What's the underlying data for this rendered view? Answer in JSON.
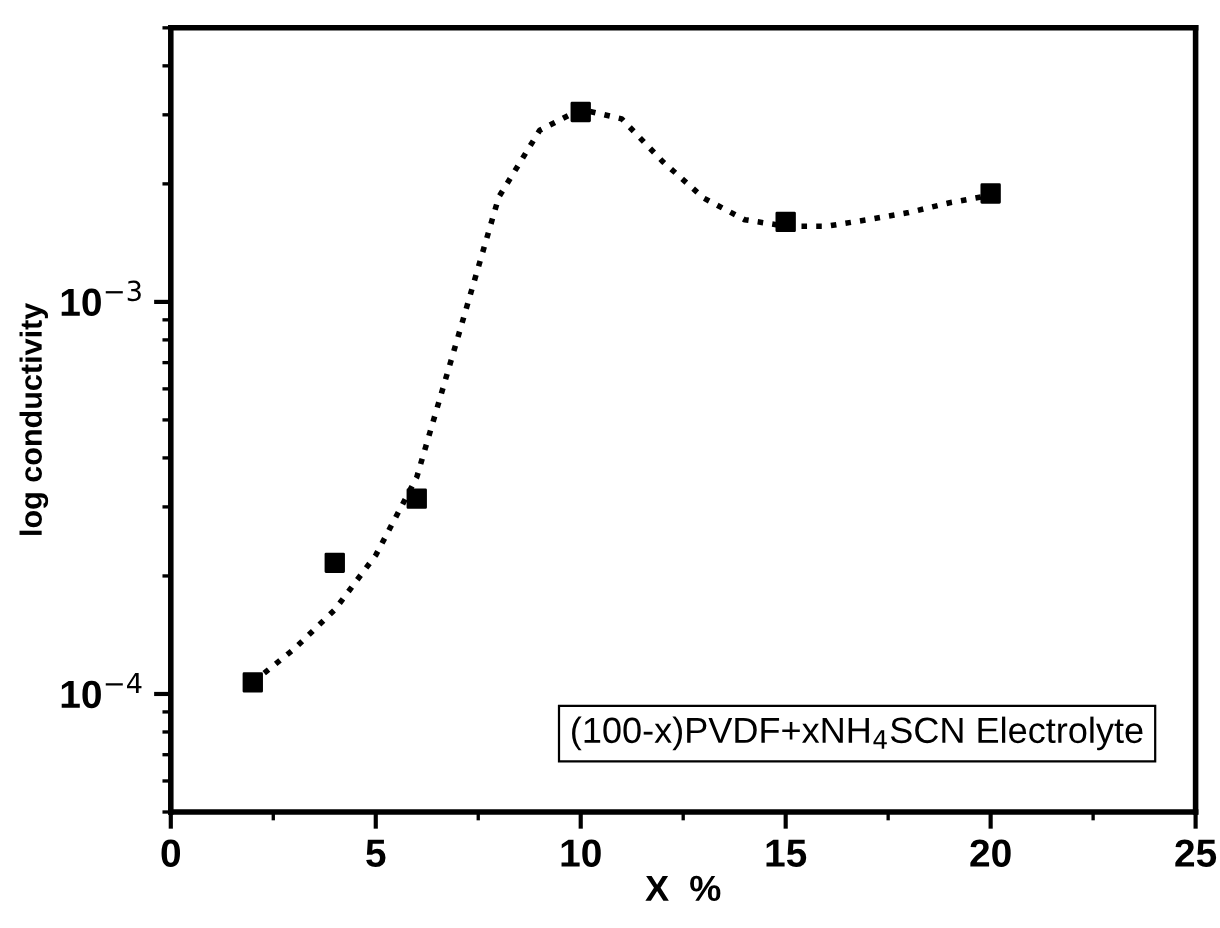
{
  "chart_data": {
    "type": "scatter",
    "xlabel": "X  %",
    "ylabel": "log conductivity",
    "log": "y",
    "xlim": [
      0,
      25
    ],
    "xticks": [
      0,
      5,
      10,
      15,
      20,
      25
    ],
    "ylim": [
      5e-05,
      0.005
    ],
    "yticks": [
      {
        "value": 0.0001,
        "label": "10$^{−4}$"
      },
      {
        "value": 0.001,
        "label": "10$^{−3}$"
      }
    ],
    "grid": false,
    "annotations": [
      "(100-x)PVDF+xNH$_{4}$SCN Electrolyte"
    ],
    "series": [
      {
        "color": "#000000",
        "marker": "square",
        "x": [
          2,
          4,
          6,
          10,
          15,
          20
        ],
        "values": [
          0.000107,
          0.000216,
          0.000315,
          0.00305,
          0.0016,
          0.00189
        ]
      },
      {
        "type": "line",
        "color": "#000000",
        "line_style": "dotted",
        "marker": "none",
        "x": [
          2,
          3,
          4,
          5,
          6,
          7,
          8,
          9,
          10,
          11,
          12,
          13,
          14,
          15,
          16,
          17,
          18,
          19,
          20
        ],
        "values": [
          0.000107,
          0.00013,
          0.000164,
          0.000226,
          0.000357,
          0.00081,
          0.00185,
          0.00274,
          0.0031,
          0.00293,
          0.00228,
          0.00184,
          0.00162,
          0.00156,
          0.00156,
          0.00162,
          0.00169,
          0.00179,
          0.00187
        ]
      }
    ]
  }
}
